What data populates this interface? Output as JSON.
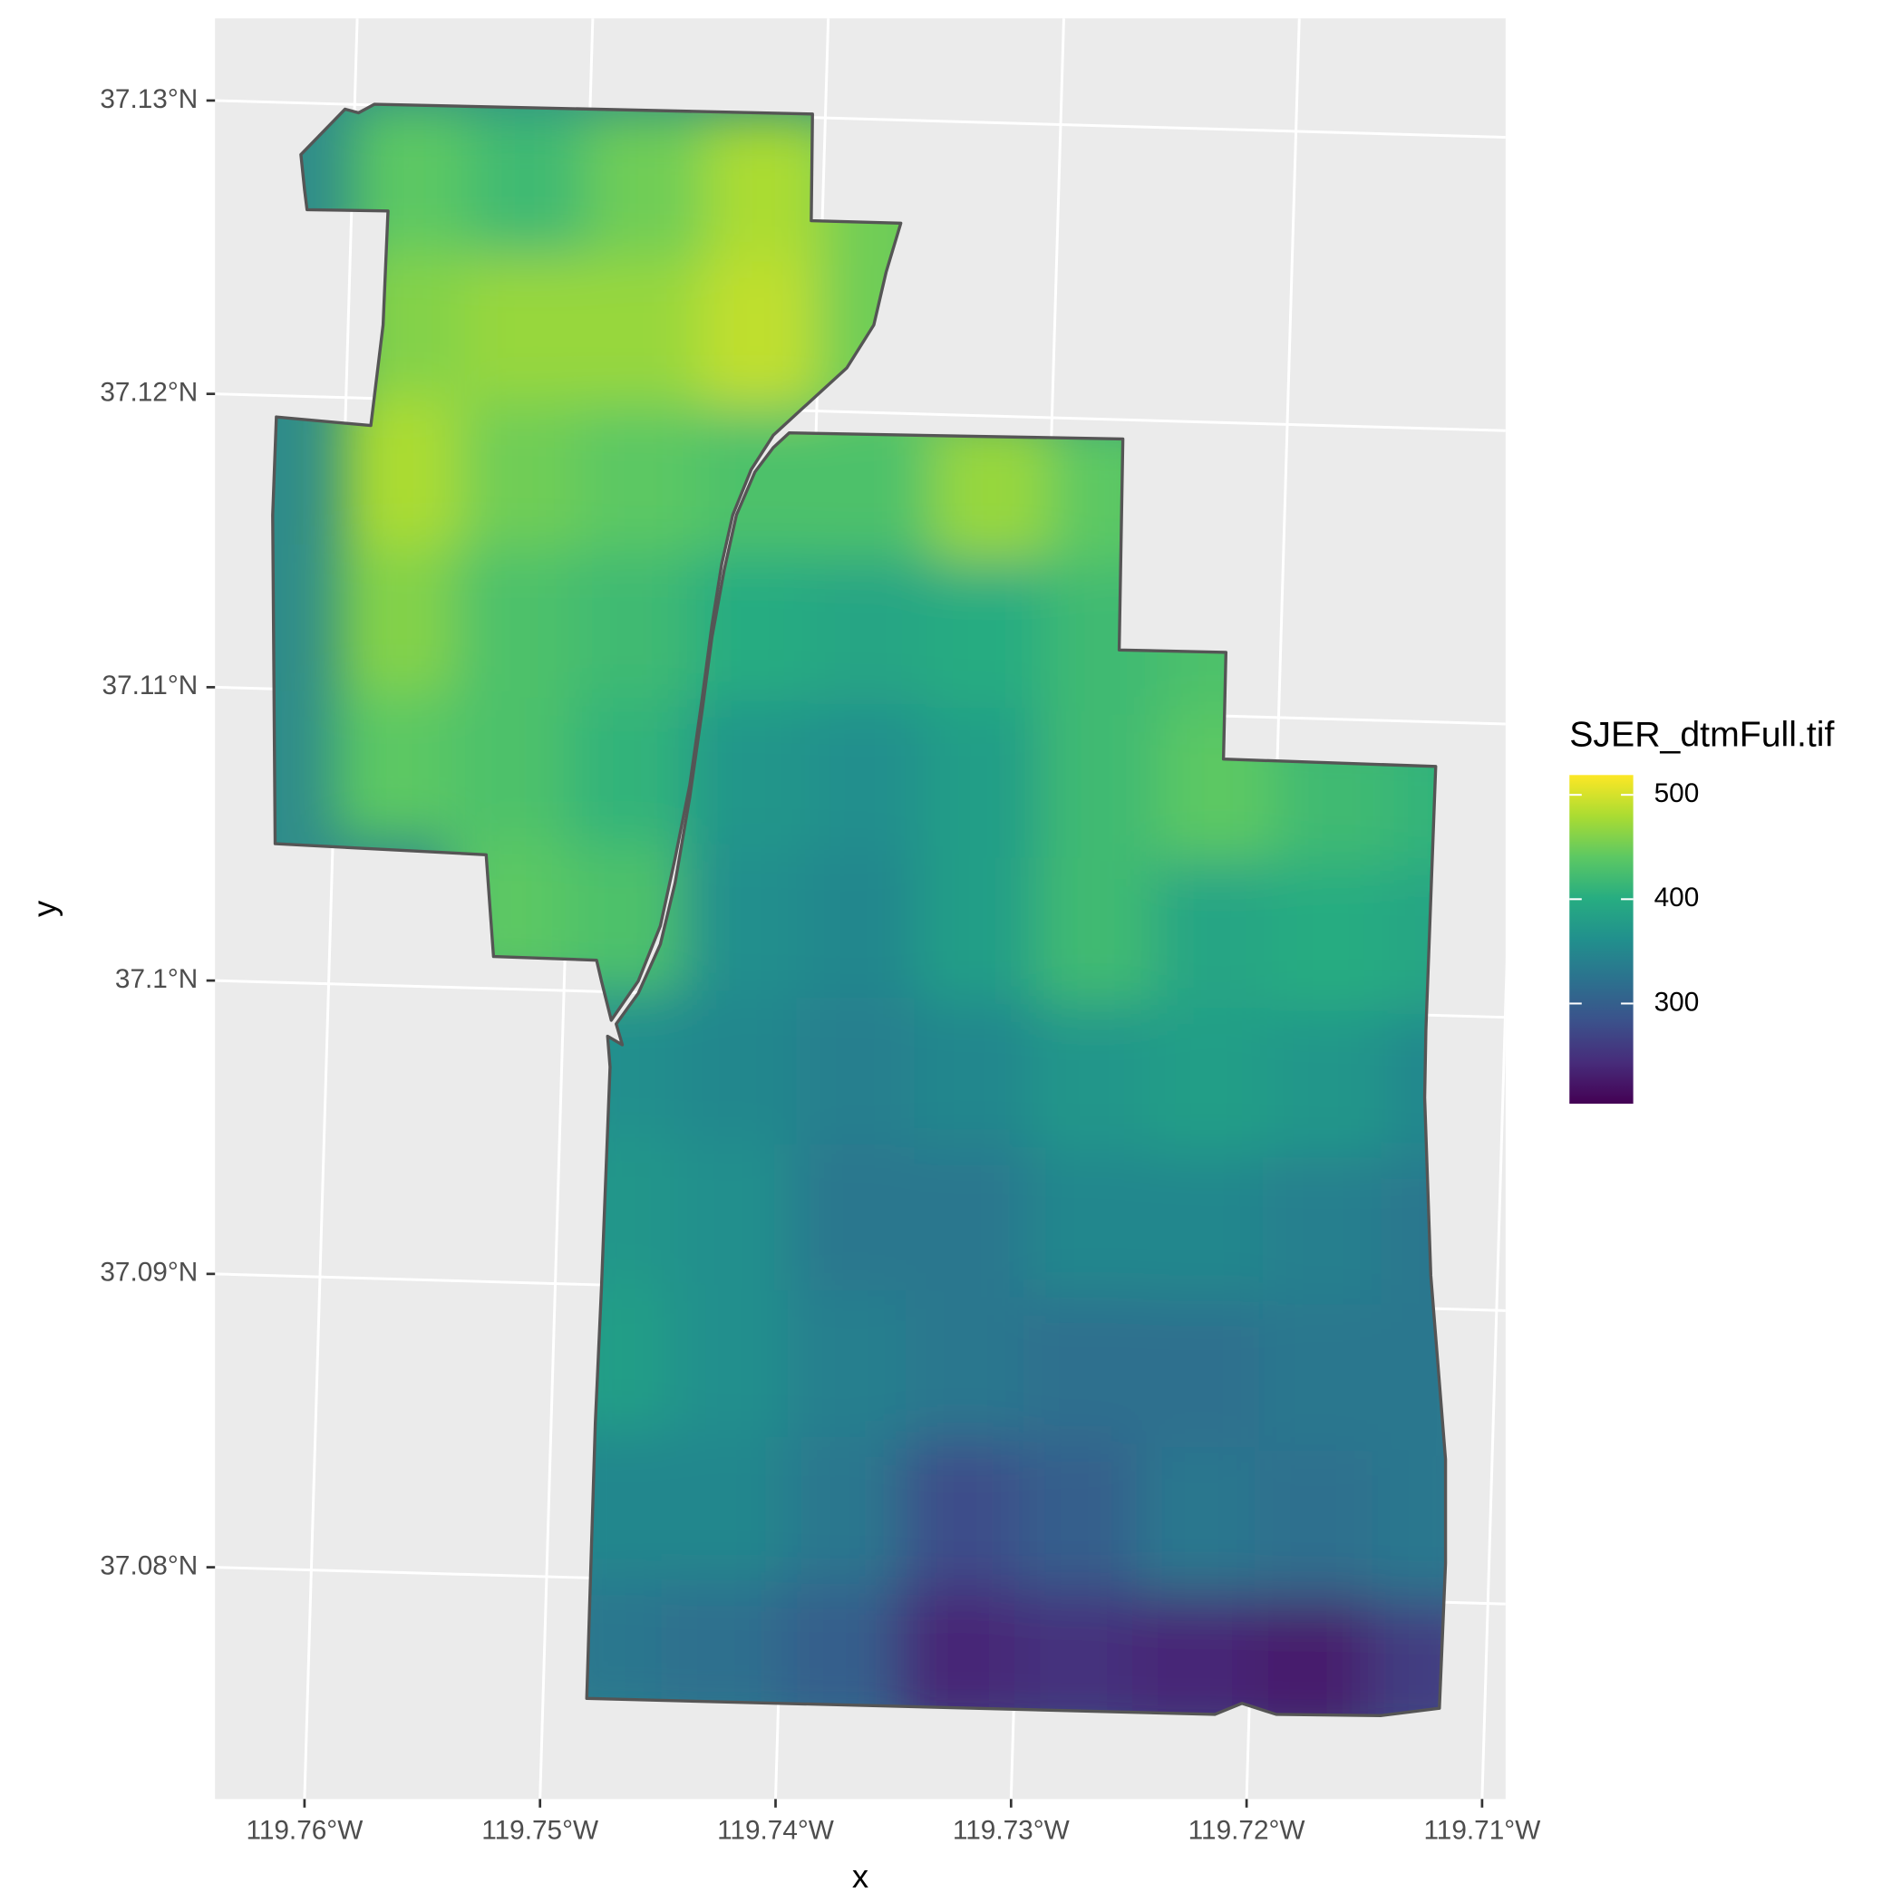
{
  "chart_data": {
    "type": "raster-map",
    "xlabel": "x",
    "ylabel": "y",
    "xlim": [
      -119.7638,
      -119.709
    ],
    "ylim": [
      37.0721,
      37.1328
    ],
    "xticks": [
      {
        "value": -119.76,
        "label": "119.76°W"
      },
      {
        "value": -119.75,
        "label": "119.75°W"
      },
      {
        "value": -119.74,
        "label": "119.74°W"
      },
      {
        "value": -119.73,
        "label": "119.73°W"
      },
      {
        "value": -119.72,
        "label": "119.72°W"
      },
      {
        "value": -119.71,
        "label": "119.71°W"
      }
    ],
    "yticks": [
      {
        "value": 37.08,
        "label": "37.08°N"
      },
      {
        "value": 37.09,
        "label": "37.09°N"
      },
      {
        "value": 37.1,
        "label": "37.1°N"
      },
      {
        "value": 37.11,
        "label": "37.11°N"
      },
      {
        "value": 37.12,
        "label": "37.12°N"
      },
      {
        "value": 37.13,
        "label": "37.13°N"
      }
    ],
    "grid": true,
    "legend": {
      "title": "SJER_dtmFull.tif",
      "position": "right",
      "limits": [
        204,
        519
      ],
      "ticks": [
        300,
        400,
        500
      ],
      "colors": [
        "#440154",
        "#472c7a",
        "#3b518b",
        "#2c718e",
        "#21908d",
        "#27ad81",
        "#5cc863",
        "#aadc32",
        "#fde725"
      ]
    },
    "raster": {
      "lon": [
        -119.7575,
        -119.7525,
        -119.7475,
        -119.7425,
        -119.7375,
        -119.7325,
        -119.7275,
        -119.7225,
        -119.7175,
        -119.7125
      ],
      "lat": [
        37.1275,
        37.1225,
        37.1175,
        37.1125,
        37.1075,
        37.1025,
        37.0975,
        37.0925,
        37.0875,
        37.0825,
        37.0775
      ],
      "values": [
        [
          440,
          420,
          450,
          480,
          450,
          null,
          null,
          null,
          null,
          null
        ],
        [
          460,
          470,
          470,
          490,
          450,
          null,
          null,
          null,
          null,
          null
        ],
        [
          480,
          450,
          440,
          430,
          430,
          470,
          440,
          null,
          null,
          null
        ],
        [
          460,
          430,
          420,
          400,
          390,
          400,
          420,
          430,
          null,
          null
        ],
        [
          440,
          430,
          410,
          370,
          360,
          380,
          420,
          440,
          420,
          410
        ],
        [
          null,
          440,
          430,
          360,
          350,
          380,
          420,
          390,
          400,
          390
        ],
        [
          null,
          null,
          360,
          350,
          340,
          350,
          370,
          380,
          370,
          350
        ],
        [
          null,
          null,
          370,
          360,
          330,
          330,
          350,
          350,
          340,
          330
        ],
        [
          null,
          null,
          380,
          360,
          340,
          330,
          320,
          320,
          330,
          330
        ],
        [
          null,
          null,
          350,
          350,
          330,
          280,
          300,
          330,
          320,
          330
        ],
        [
          null,
          null,
          330,
          320,
          300,
          240,
          250,
          240,
          230,
          260
        ]
      ]
    }
  }
}
